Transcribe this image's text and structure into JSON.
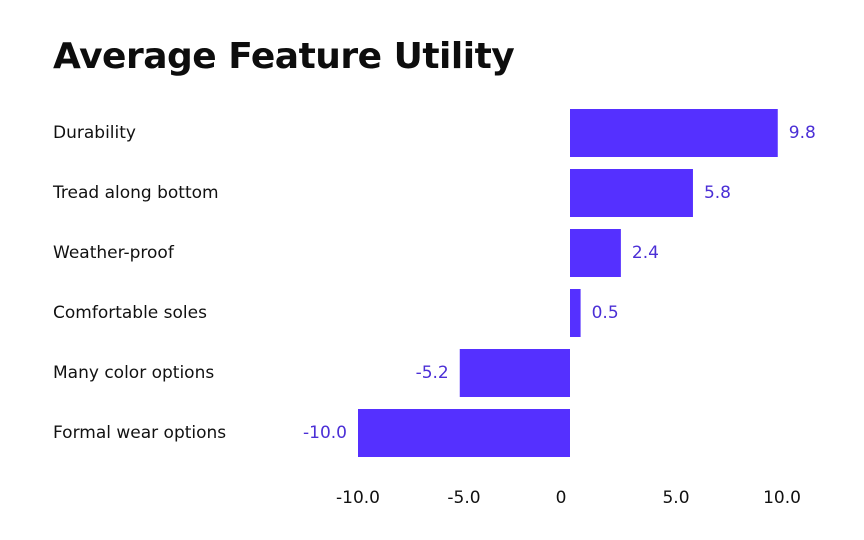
{
  "chart_data": {
    "type": "bar",
    "orientation": "horizontal",
    "title": "Average Feature Utility",
    "xlabel": "",
    "ylabel": "",
    "categories": [
      "Durability",
      "Tread along bottom",
      "Weather-proof",
      "Comfortable soles",
      "Many color options",
      "Formal wear options"
    ],
    "values": [
      9.8,
      5.8,
      2.4,
      0.5,
      -5.2,
      -10.0
    ],
    "value_labels": [
      "9.8",
      "5.8",
      "2.4",
      "0.5",
      "-5.2",
      "-10.0"
    ],
    "xlim": [
      -10.0,
      10.0
    ],
    "x_ticks": [
      -10.0,
      -5.0,
      0,
      5.0,
      10.0
    ],
    "x_tick_labels": [
      "-10.0",
      "-5.0",
      "0",
      "5.0",
      "10.0"
    ],
    "grid": false,
    "legend": "none",
    "bar_color": "#5530ff",
    "label_color": "#4b2fd6"
  }
}
